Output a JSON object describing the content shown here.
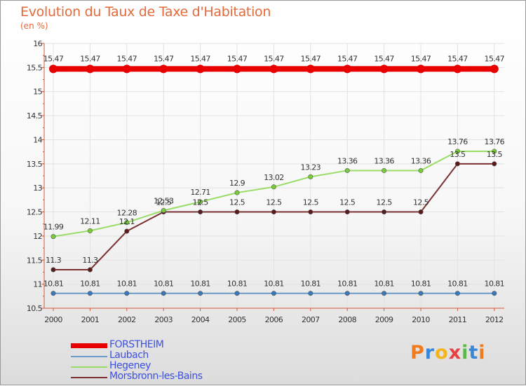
{
  "chart_data": {
    "type": "line",
    "title": "Evolution du Taux de Taxe d'Habitation",
    "subtitle": "(en %)",
    "xlabel": "",
    "ylabel": "",
    "categories": [
      "2000",
      "2001",
      "2002",
      "2003",
      "2004",
      "2005",
      "2006",
      "2007",
      "2008",
      "2009",
      "2010",
      "2011",
      "2012"
    ],
    "yticks": [
      "10.5",
      "11",
      "11.5",
      "12",
      "12.5",
      "13",
      "13.5",
      "14",
      "14.5",
      "15",
      "15.5",
      "16"
    ],
    "ylim": [
      10.5,
      16
    ],
    "series": [
      {
        "name": "FORSTHEIM",
        "color": "#e80000",
        "values": [
          15.47,
          15.47,
          15.47,
          15.47,
          15.47,
          15.47,
          15.47,
          15.47,
          15.47,
          15.47,
          15.47,
          15.47,
          15.47
        ],
        "labels": [
          "15.47",
          "15.47",
          "15.47",
          "15.47",
          "15.47",
          "15.47",
          "15.47",
          "15.47",
          "15.47",
          "15.47",
          "15.47",
          "15.47",
          "15.47"
        ]
      },
      {
        "name": "Laubach",
        "color": "#6a9bc8",
        "values": [
          10.81,
          10.81,
          10.81,
          10.81,
          10.81,
          10.81,
          10.81,
          10.81,
          10.81,
          10.81,
          10.81,
          10.81,
          10.81
        ],
        "labels": [
          "10.81",
          "10.81",
          "10.81",
          "10.81",
          "10.81",
          "10.81",
          "10.81",
          "10.81",
          "10.81",
          "10.81",
          "10.81",
          "10.81",
          "10.81"
        ]
      },
      {
        "name": "Hegeney",
        "color": "#99dd66",
        "values": [
          11.99,
          12.11,
          12.28,
          12.53,
          12.71,
          12.9,
          13.02,
          13.23,
          13.36,
          13.36,
          13.36,
          13.76,
          13.76
        ],
        "labels": [
          "11.99",
          "12.11",
          "12.28",
          "12.53",
          "12.71",
          "12.9",
          "13.02",
          "13.23",
          "13.36",
          "13.36",
          "13.36",
          "13.76",
          "13.76"
        ]
      },
      {
        "name": "Morsbronn-les-Bains",
        "color": "#7a3030",
        "values": [
          11.3,
          11.3,
          12.1,
          12.5,
          12.5,
          12.5,
          12.5,
          12.5,
          12.5,
          12.5,
          12.5,
          13.5,
          13.5
        ],
        "labels": [
          "11.3",
          "11.3",
          "12.1",
          "12.5",
          "12.5",
          "12.5",
          "12.5",
          "12.5",
          "12.5",
          "12.5",
          "12.5",
          "13.5",
          "13.5"
        ]
      }
    ],
    "grid": true,
    "legend_position": "bottom-left"
  },
  "logo": {
    "text": "Proxiti",
    "letters": [
      "P",
      "r",
      "o",
      "x",
      "i",
      "t",
      "i"
    ],
    "colors": [
      "#f07b1f",
      "#3a86d8",
      "#f2b51d",
      "#e84040",
      "#58b848",
      "#3a86d8",
      "#f07b1f"
    ]
  }
}
